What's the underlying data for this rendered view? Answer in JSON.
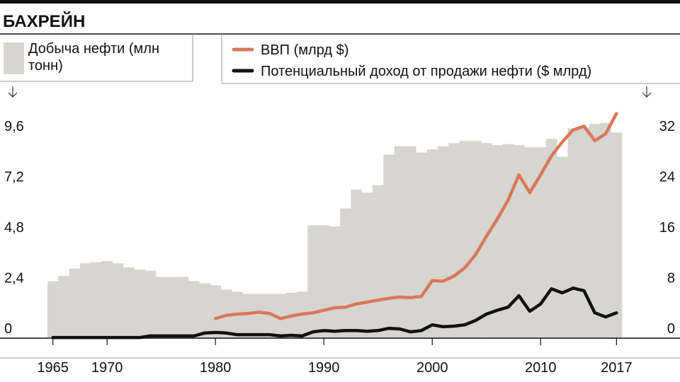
{
  "chart_data": {
    "type": "bar-line",
    "title": "БАХРЕЙН",
    "x": [
      1965,
      1966,
      1967,
      1968,
      1969,
      1970,
      1971,
      1972,
      1973,
      1974,
      1975,
      1976,
      1977,
      1978,
      1979,
      1980,
      1981,
      1982,
      1983,
      1984,
      1985,
      1986,
      1987,
      1988,
      1989,
      1990,
      1991,
      1992,
      1993,
      1994,
      1995,
      1996,
      1997,
      1998,
      1999,
      2000,
      2001,
      2002,
      2003,
      2004,
      2005,
      2006,
      2007,
      2008,
      2009,
      2010,
      2011,
      2012,
      2013,
      2014,
      2015,
      2016,
      2017
    ],
    "series": [
      {
        "name": "Добыча нефти (млн тонн)",
        "type": "bar",
        "axis": "y",
        "color": "#d6d5cf",
        "values": [
          2.7,
          2.95,
          3.3,
          3.55,
          3.6,
          3.65,
          3.55,
          3.35,
          3.25,
          3.2,
          2.9,
          2.9,
          2.9,
          2.7,
          2.6,
          2.5,
          2.3,
          2.2,
          2.1,
          2.1,
          2.1,
          2.1,
          2.15,
          2.2,
          5.35,
          5.35,
          5.3,
          6.15,
          7.05,
          6.9,
          7.25,
          8.7,
          9.1,
          9.1,
          8.8,
          8.95,
          9.1,
          9.25,
          9.35,
          9.35,
          9.25,
          9.15,
          9.2,
          9.15,
          9.05,
          9.05,
          9.45,
          8.6,
          9.95,
          10.0,
          10.15,
          10.2,
          9.75
        ]
      },
      {
        "name": "ВВП (млрд $)",
        "type": "line",
        "axis": "y2",
        "color": "#d9785a",
        "values": [
          null,
          null,
          null,
          null,
          null,
          null,
          null,
          null,
          null,
          null,
          null,
          null,
          null,
          null,
          null,
          3.1,
          3.6,
          3.8,
          3.9,
          4.1,
          3.9,
          3.1,
          3.5,
          3.8,
          4.0,
          4.4,
          4.8,
          4.9,
          5.4,
          5.7,
          6.0,
          6.3,
          6.5,
          6.4,
          6.6,
          9.1,
          9.0,
          9.8,
          11.1,
          13.2,
          16.1,
          18.8,
          21.8,
          25.8,
          23.0,
          25.8,
          28.8,
          31.0,
          32.9,
          33.5,
          31.2,
          32.3,
          35.5
        ]
      },
      {
        "name": "Потенциальный доход от продажи нефти ($ млрд)",
        "type": "line",
        "axis": "y2",
        "color": "#111111",
        "values": [
          0.1,
          0.1,
          0.1,
          0.1,
          0.1,
          0.1,
          0.1,
          0.1,
          0.1,
          0.35,
          0.35,
          0.35,
          0.35,
          0.35,
          0.8,
          0.9,
          0.8,
          0.55,
          0.55,
          0.55,
          0.55,
          0.35,
          0.45,
          0.35,
          1.0,
          1.2,
          1.1,
          1.2,
          1.2,
          1.1,
          1.2,
          1.55,
          1.45,
          1.0,
          1.2,
          2.1,
          1.8,
          1.9,
          2.1,
          2.8,
          3.8,
          4.4,
          4.9,
          6.7,
          4.25,
          5.4,
          7.8,
          7.15,
          7.9,
          7.5,
          4.0,
          3.35,
          4.0
        ]
      }
    ],
    "xlim": [
      1964.5,
      2017.5
    ],
    "xticks": [
      1965,
      1970,
      1980,
      1990,
      2000,
      2010,
      2017
    ],
    "ylim": [
      0,
      10.8
    ],
    "yticks": [
      0,
      {
        "value": 2.4,
        "label": "2,4"
      },
      {
        "value": 4.8,
        "label": "4,8"
      },
      {
        "value": 7.2,
        "label": "7,2"
      },
      {
        "value": 9.6,
        "label": "9,6"
      }
    ],
    "y2lim": [
      0,
      36
    ],
    "y2ticks": [
      0,
      8,
      16,
      24,
      32
    ],
    "legend": "top"
  }
}
